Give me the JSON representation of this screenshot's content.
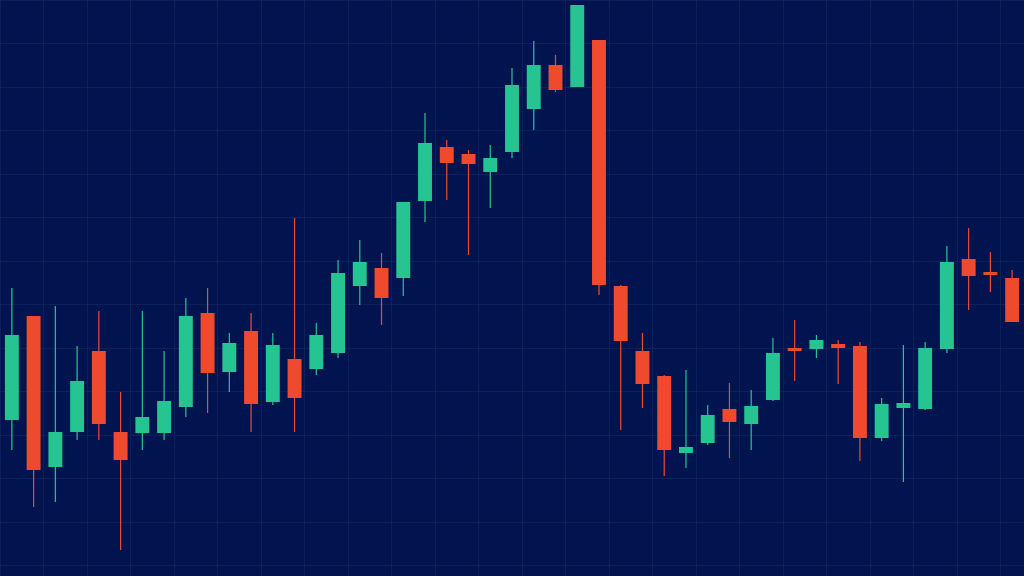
{
  "chart_data": {
    "type": "candlestick",
    "open": [
      156,
      260,
      109,
      144,
      225,
      144,
      143,
      143,
      169,
      263,
      204,
      245,
      174,
      217,
      207,
      223,
      290,
      308,
      298,
      375,
      429,
      422,
      404,
      424,
      467,
      511,
      489,
      536,
      290,
      225,
      200,
      123,
      133,
      167,
      152,
      176,
      228,
      227,
      232,
      230,
      138,
      168,
      167,
      227,
      317,
      304,
      298
    ],
    "high": [
      288,
      260,
      270,
      230,
      265,
      184,
      265,
      225,
      278,
      288,
      243,
      263,
      243,
      358,
      253,
      316,
      336,
      323,
      374,
      463,
      436,
      426,
      431,
      508,
      535,
      521,
      571,
      536,
      291,
      243,
      201,
      206,
      171,
      193,
      186,
      238,
      256,
      241,
      236,
      234,
      178,
      231,
      234,
      330,
      348,
      324,
      306
    ],
    "low": [
      126,
      69,
      74,
      136,
      136,
      26,
      126,
      136,
      159,
      163,
      184,
      144,
      171,
      144,
      201,
      218,
      271,
      251,
      280,
      354,
      376,
      321,
      368,
      418,
      446,
      484,
      489,
      281,
      146,
      168,
      100,
      108,
      131,
      118,
      126,
      175,
      195,
      218,
      192,
      115,
      135,
      94,
      166,
      223,
      266,
      284,
      254
    ],
    "close": [
      241,
      106,
      144,
      195,
      152,
      116,
      159,
      175,
      260,
      203,
      233,
      172,
      231,
      178,
      241,
      303,
      314,
      278,
      374,
      433,
      413,
      412,
      418,
      491,
      511,
      486,
      571,
      291,
      235,
      192,
      126,
      129,
      161,
      154,
      170,
      223,
      225,
      236,
      228,
      138,
      172,
      173,
      228,
      314,
      300,
      301,
      254
    ],
    "up_color": "#26c490",
    "down_color": "#f04a2e",
    "ylim": [
      0,
      576
    ],
    "grid": true
  }
}
